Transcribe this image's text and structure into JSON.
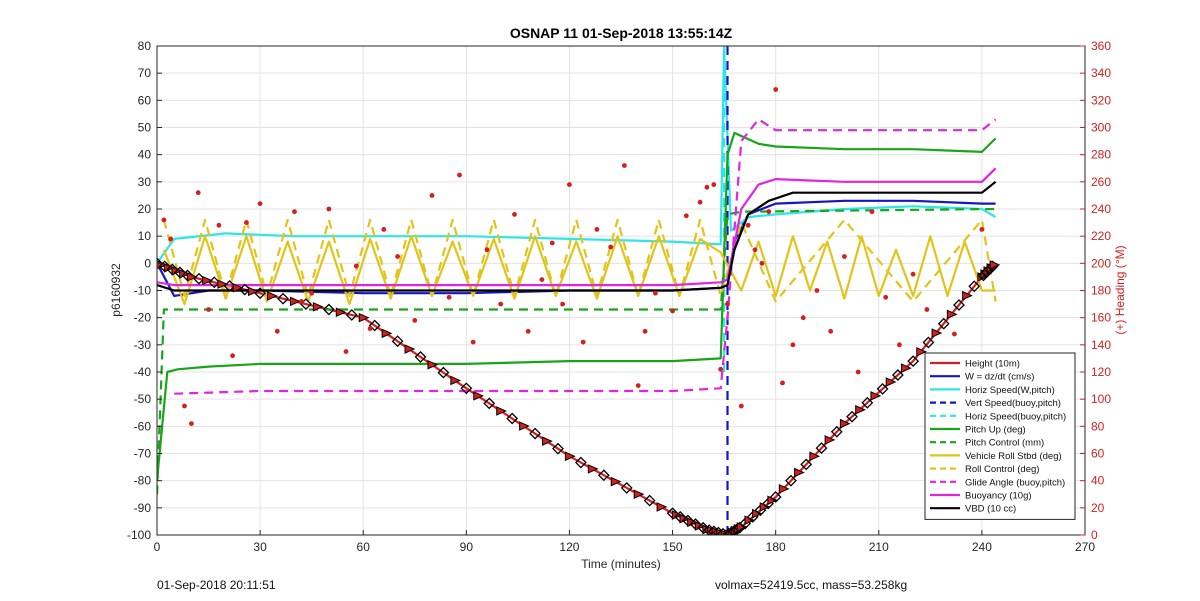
{
  "chart_data": {
    "type": "line",
    "title": "OSNAP 11 01-Sep-2018 13:55:14Z",
    "xlabel": "Time (minutes)",
    "ylabel": "p6160932",
    "y2label": "(+) Heading (°M)",
    "xlim": [
      0,
      270
    ],
    "ylim": [
      -100,
      80
    ],
    "y2lim": [
      0,
      360
    ],
    "xticks": [
      0,
      30,
      60,
      90,
      120,
      150,
      180,
      210,
      240,
      270
    ],
    "yticks": [
      80,
      70,
      60,
      50,
      40,
      30,
      20,
      10,
      0,
      -10,
      -20,
      -30,
      -40,
      -50,
      -60,
      -70,
      -80,
      -90,
      -100
    ],
    "y2ticks": [
      360,
      340,
      320,
      300,
      280,
      260,
      240,
      220,
      200,
      180,
      160,
      140,
      120,
      100,
      80,
      60,
      40,
      20,
      0
    ],
    "grid": true,
    "legend_position": "bottom-right",
    "colors": {
      "red": "#d41f1f",
      "blue": "#1414c8",
      "cyan": "#2ee6ea",
      "green": "#19a519",
      "yellow": "#e2c418",
      "magenta": "#e024e0",
      "black": "#000000",
      "right_axis": "#d42020"
    },
    "series": [
      {
        "name": "Height (10m)",
        "color": "#d41f1f",
        "style": "solid",
        "x": [
          0,
          10,
          30,
          60,
          90,
          120,
          150,
          160,
          166,
          170,
          180,
          200,
          220,
          240,
          244
        ],
        "y": [
          0,
          -5,
          -11,
          -20,
          -46,
          -71,
          -92,
          -98,
          -100,
          -97,
          -86,
          -59,
          -36,
          -5,
          0
        ]
      },
      {
        "name": "W = dz/dt (cm/s)",
        "color": "#1414c8",
        "style": "solid",
        "x": [
          0,
          5,
          15,
          30,
          60,
          90,
          120,
          150,
          164,
          166,
          168,
          172,
          180,
          200,
          220,
          240,
          244
        ],
        "y": [
          0,
          -12,
          -10,
          -10,
          -11,
          -11,
          -10,
          -10,
          -9,
          -8,
          8,
          18,
          22,
          23,
          23,
          22,
          22
        ]
      },
      {
        "name": "Horiz Speed(W,pitch)",
        "color": "#2ee6ea",
        "style": "solid",
        "x": [
          0,
          5,
          20,
          40,
          60,
          90,
          120,
          150,
          164,
          165,
          167,
          172,
          180,
          200,
          220,
          240,
          244
        ],
        "y": [
          0,
          9,
          11,
          10,
          10,
          10,
          9,
          8,
          7,
          80,
          12,
          17,
          18,
          20,
          21,
          20,
          17
        ]
      },
      {
        "name": "Vert Speed(buoy,pitch)",
        "color": "#1414c8",
        "style": "dashed",
        "x": [
          166,
          166
        ],
        "y": [
          -100,
          80
        ]
      },
      {
        "name": "Horiz Speed(buoy,pitch)",
        "color": "#2ee6ea",
        "style": "dashed",
        "x": [
          165,
          165
        ],
        "y": [
          -40,
          80
        ]
      },
      {
        "name": "Pitch Up (deg)",
        "color": "#19a519",
        "style": "solid",
        "x": [
          0,
          3,
          6,
          15,
          30,
          60,
          90,
          120,
          150,
          164,
          166,
          168,
          175,
          180,
          200,
          220,
          240,
          244
        ],
        "y": [
          -80,
          -40,
          -39,
          -38,
          -37,
          -37,
          -37,
          -36,
          -36,
          -35,
          40,
          48,
          44,
          43,
          42,
          42,
          41,
          46
        ]
      },
      {
        "name": "Pitch Control (mm)",
        "color": "#19a519",
        "style": "dashed",
        "x": [
          0,
          2,
          5,
          60,
          120,
          164,
          166,
          170,
          244
        ],
        "y": [
          -85,
          -17,
          -17,
          -17,
          -17,
          -17,
          18,
          19,
          20
        ]
      },
      {
        "name": "Vehicle Roll Stbd (deg)",
        "color": "#e2c418",
        "style": "solid",
        "x": [
          2,
          8,
          14,
          20,
          26,
          32,
          38,
          44,
          50,
          56,
          62,
          68,
          74,
          80,
          86,
          92,
          98,
          104,
          110,
          116,
          122,
          128,
          134,
          140,
          146,
          152,
          158,
          164,
          170,
          175,
          180,
          185,
          190,
          195,
          200,
          205,
          210,
          215,
          220,
          225,
          230,
          235,
          240,
          244
        ],
        "y": [
          5,
          -15,
          10,
          -13,
          10,
          -14,
          8,
          -14,
          8,
          -15,
          9,
          -13,
          10,
          -12,
          8,
          -12,
          9,
          -13,
          10,
          -12,
          8,
          -13,
          10,
          -12,
          10,
          -12,
          9,
          4,
          -10,
          8,
          -12,
          10,
          -10,
          8,
          -13,
          10,
          -12,
          5,
          -12,
          10,
          -12,
          8,
          -10,
          -10
        ]
      },
      {
        "name": "Roll Control (deg)",
        "color": "#e2c418",
        "style": "dashed",
        "x": [
          2,
          8,
          14,
          20,
          26,
          32,
          38,
          44,
          50,
          56,
          62,
          68,
          74,
          80,
          86,
          92,
          98,
          104,
          110,
          116,
          122,
          128,
          134,
          140,
          146,
          152,
          158,
          164,
          170,
          180,
          200,
          220,
          240,
          244
        ],
        "y": [
          16,
          -12,
          16,
          -12,
          16,
          -12,
          16,
          -12,
          16,
          -12,
          16,
          -12,
          16,
          -12,
          16,
          -12,
          16,
          -12,
          16,
          -12,
          16,
          -12,
          16,
          -12,
          16,
          -12,
          16,
          -12,
          15,
          -14,
          16,
          -14,
          16,
          -14
        ]
      },
      {
        "name": "Glide Angle (buoy,pitch)",
        "color": "#e024e0",
        "style": "dashed",
        "x": [
          5,
          30,
          60,
          90,
          120,
          150,
          164,
          166,
          170,
          175,
          180,
          200,
          220,
          240,
          244
        ],
        "y": [
          -48,
          -47,
          -47,
          -47,
          -47,
          -47,
          -46,
          -20,
          45,
          53,
          49,
          49,
          49,
          49,
          53
        ]
      },
      {
        "name": "Buoyancy (10g)",
        "color": "#e024e0",
        "style": "solid",
        "x": [
          0,
          5,
          30,
          60,
          90,
          120,
          150,
          164,
          166,
          170,
          175,
          180,
          200,
          220,
          240,
          244
        ],
        "y": [
          -7,
          -8,
          -8,
          -8,
          -8,
          -8,
          -8,
          -7,
          -6,
          20,
          29,
          31,
          30,
          30,
          30,
          35
        ]
      },
      {
        "name": "VBD (10 cc)",
        "color": "#000000",
        "style": "solid",
        "x": [
          0,
          5,
          20,
          60,
          90,
          120,
          150,
          164,
          166,
          168,
          172,
          178,
          185,
          200,
          220,
          240,
          244
        ],
        "y": [
          -8,
          -10,
          -10,
          -10,
          -10,
          -10,
          -10,
          -9,
          -8,
          5,
          18,
          23,
          26,
          26,
          26,
          26,
          30
        ]
      }
    ],
    "heading_points": {
      "x": [
        2,
        4,
        8,
        10,
        12,
        15,
        18,
        22,
        26,
        30,
        35,
        40,
        42,
        45,
        50,
        55,
        58,
        62,
        66,
        70,
        75,
        80,
        85,
        88,
        92,
        96,
        100,
        104,
        108,
        112,
        115,
        118,
        120,
        124,
        128,
        132,
        136,
        140,
        142,
        145,
        150,
        154,
        158,
        160,
        162,
        164,
        166,
        170,
        172,
        174,
        176,
        178,
        180,
        182,
        185,
        188,
        192,
        196,
        200,
        204,
        208,
        212,
        216,
        220,
        224,
        228,
        232,
        236,
        240
      ],
      "y": [
        232,
        218,
        95,
        82,
        252,
        166,
        228,
        132,
        230,
        244,
        150,
        238,
        172,
        178,
        240,
        135,
        198,
        152,
        225,
        205,
        158,
        250,
        175,
        265,
        142,
        210,
        170,
        236,
        150,
        188,
        215,
        170,
        258,
        142,
        225,
        212,
        272,
        110,
        150,
        178,
        165,
        235,
        245,
        256,
        258,
        122,
        170,
        95,
        228,
        210,
        200,
        238,
        328,
        112,
        140,
        160,
        180,
        150,
        205,
        120,
        238,
        175,
        140,
        192,
        166,
        115,
        148,
        130,
        225
      ]
    },
    "annotations": {
      "bottom_left": "01-Sep-2018 20:11:51",
      "bottom_right": "volmax=52419.5cc, mass=53.258kg"
    }
  }
}
